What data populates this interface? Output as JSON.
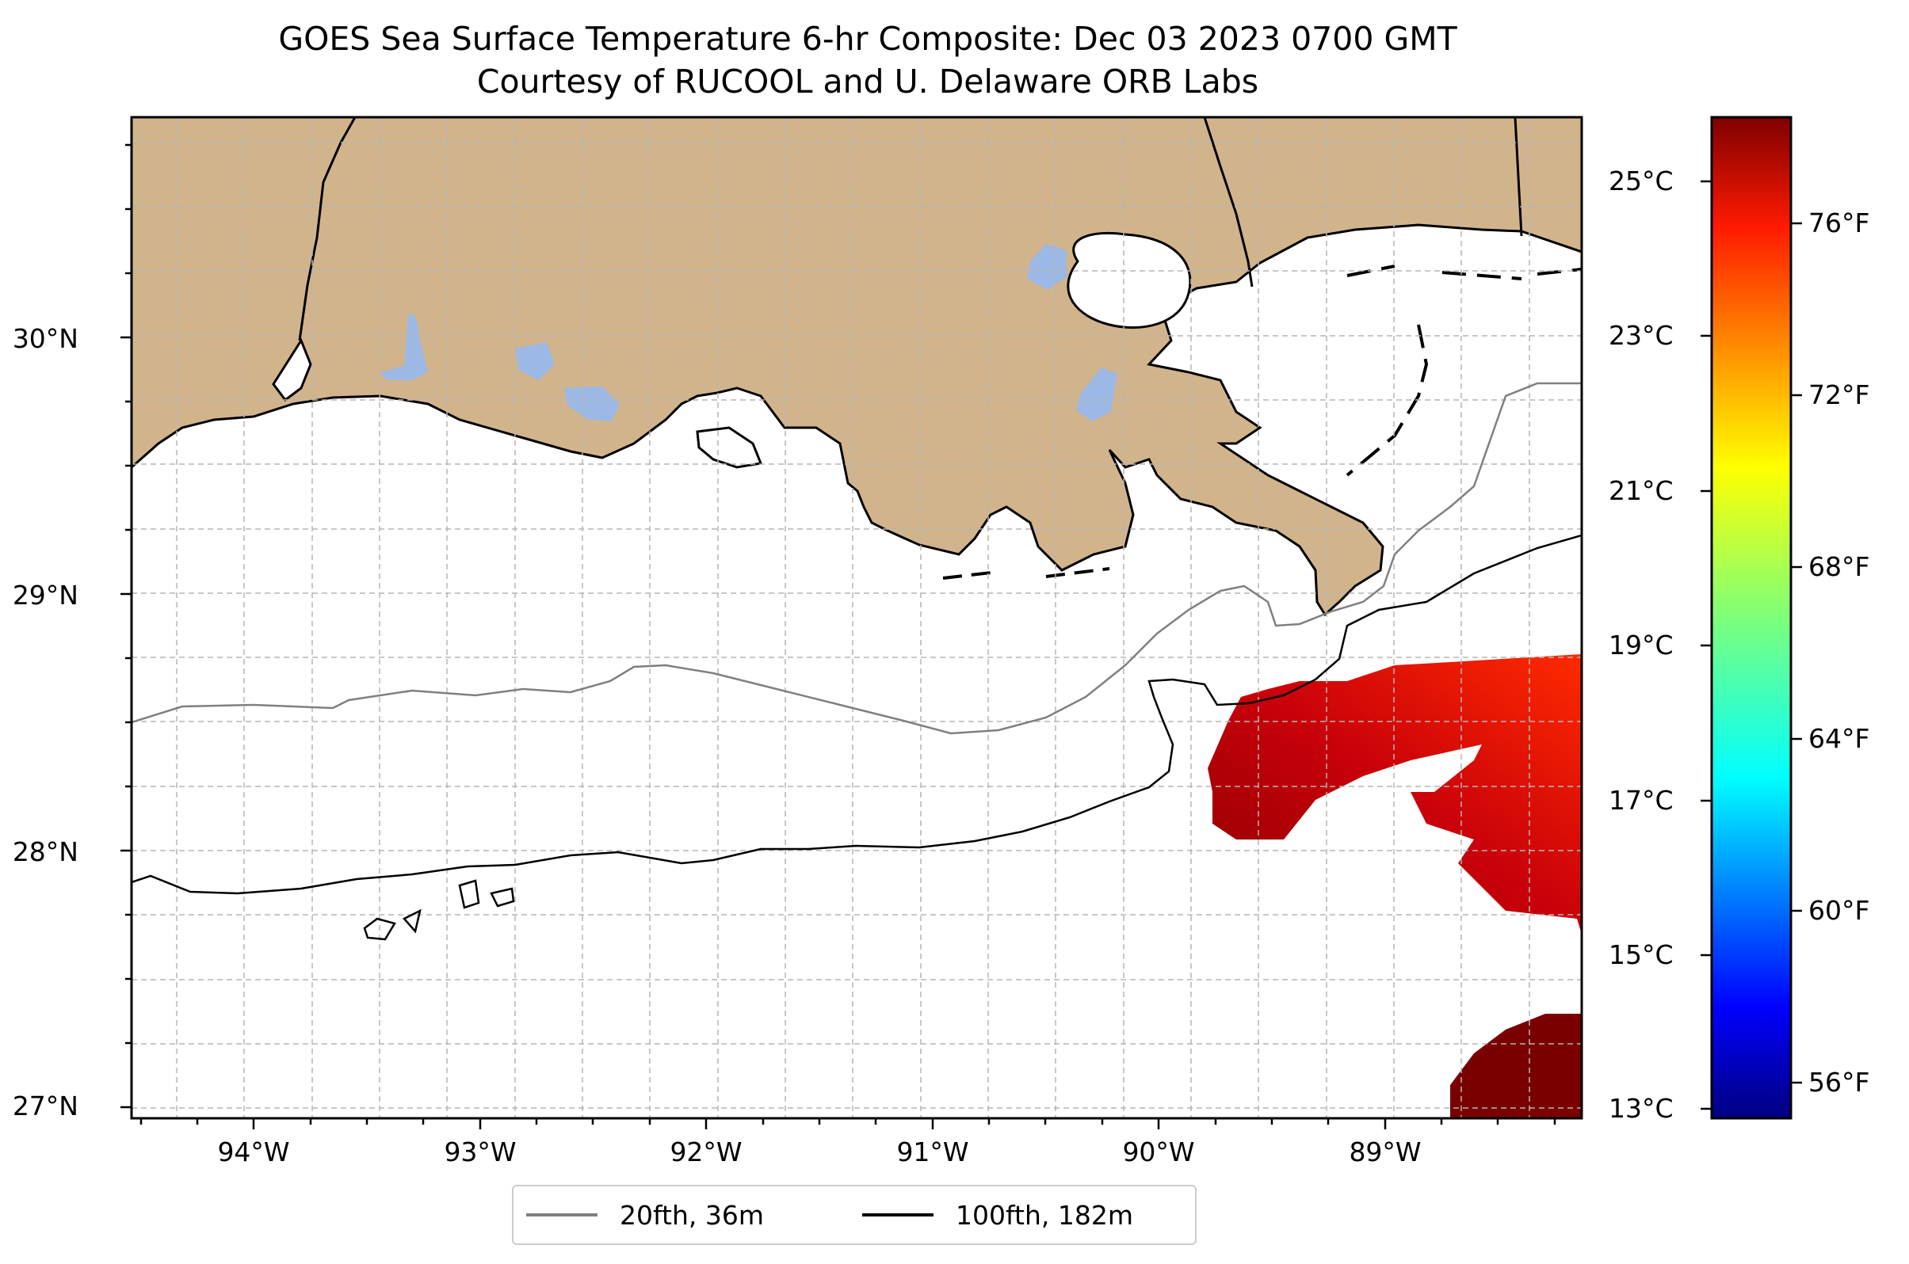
{
  "title": "GOES Sea Surface Temperature 6-hr Composite: Dec 03 2023 0700 GMT",
  "subtitle": "Courtesy of RUCOOL and U. Delaware ORB Labs",
  "map": {
    "lon_range": [
      -94.55,
      -88.1
    ],
    "lat_range": [
      26.93,
      30.83
    ],
    "lon_ticks": [
      "94°W",
      "93°W",
      "92°W",
      "91°W",
      "90°W",
      "89°W"
    ],
    "lat_ticks": [
      "30°N",
      "29°N",
      "28°N",
      "27°N"
    ],
    "land_color": "#d2b48c",
    "water_body_color": "#9cb8e4",
    "grid": "dashed-gray"
  },
  "colorbar": {
    "colormap": "jet",
    "celsius_labels": [
      "25°C",
      "23°C",
      "21°C",
      "19°C",
      "17°C",
      "15°C",
      "13°C"
    ],
    "fahrenheit_labels": [
      "76°F",
      "72°F",
      "68°F",
      "64°F",
      "60°F",
      "56°F"
    ]
  },
  "legend": {
    "items": [
      {
        "label": "20fth, 36m",
        "color": "#808080"
      },
      {
        "label": "100fth, 182m",
        "color": "#000000"
      }
    ]
  }
}
